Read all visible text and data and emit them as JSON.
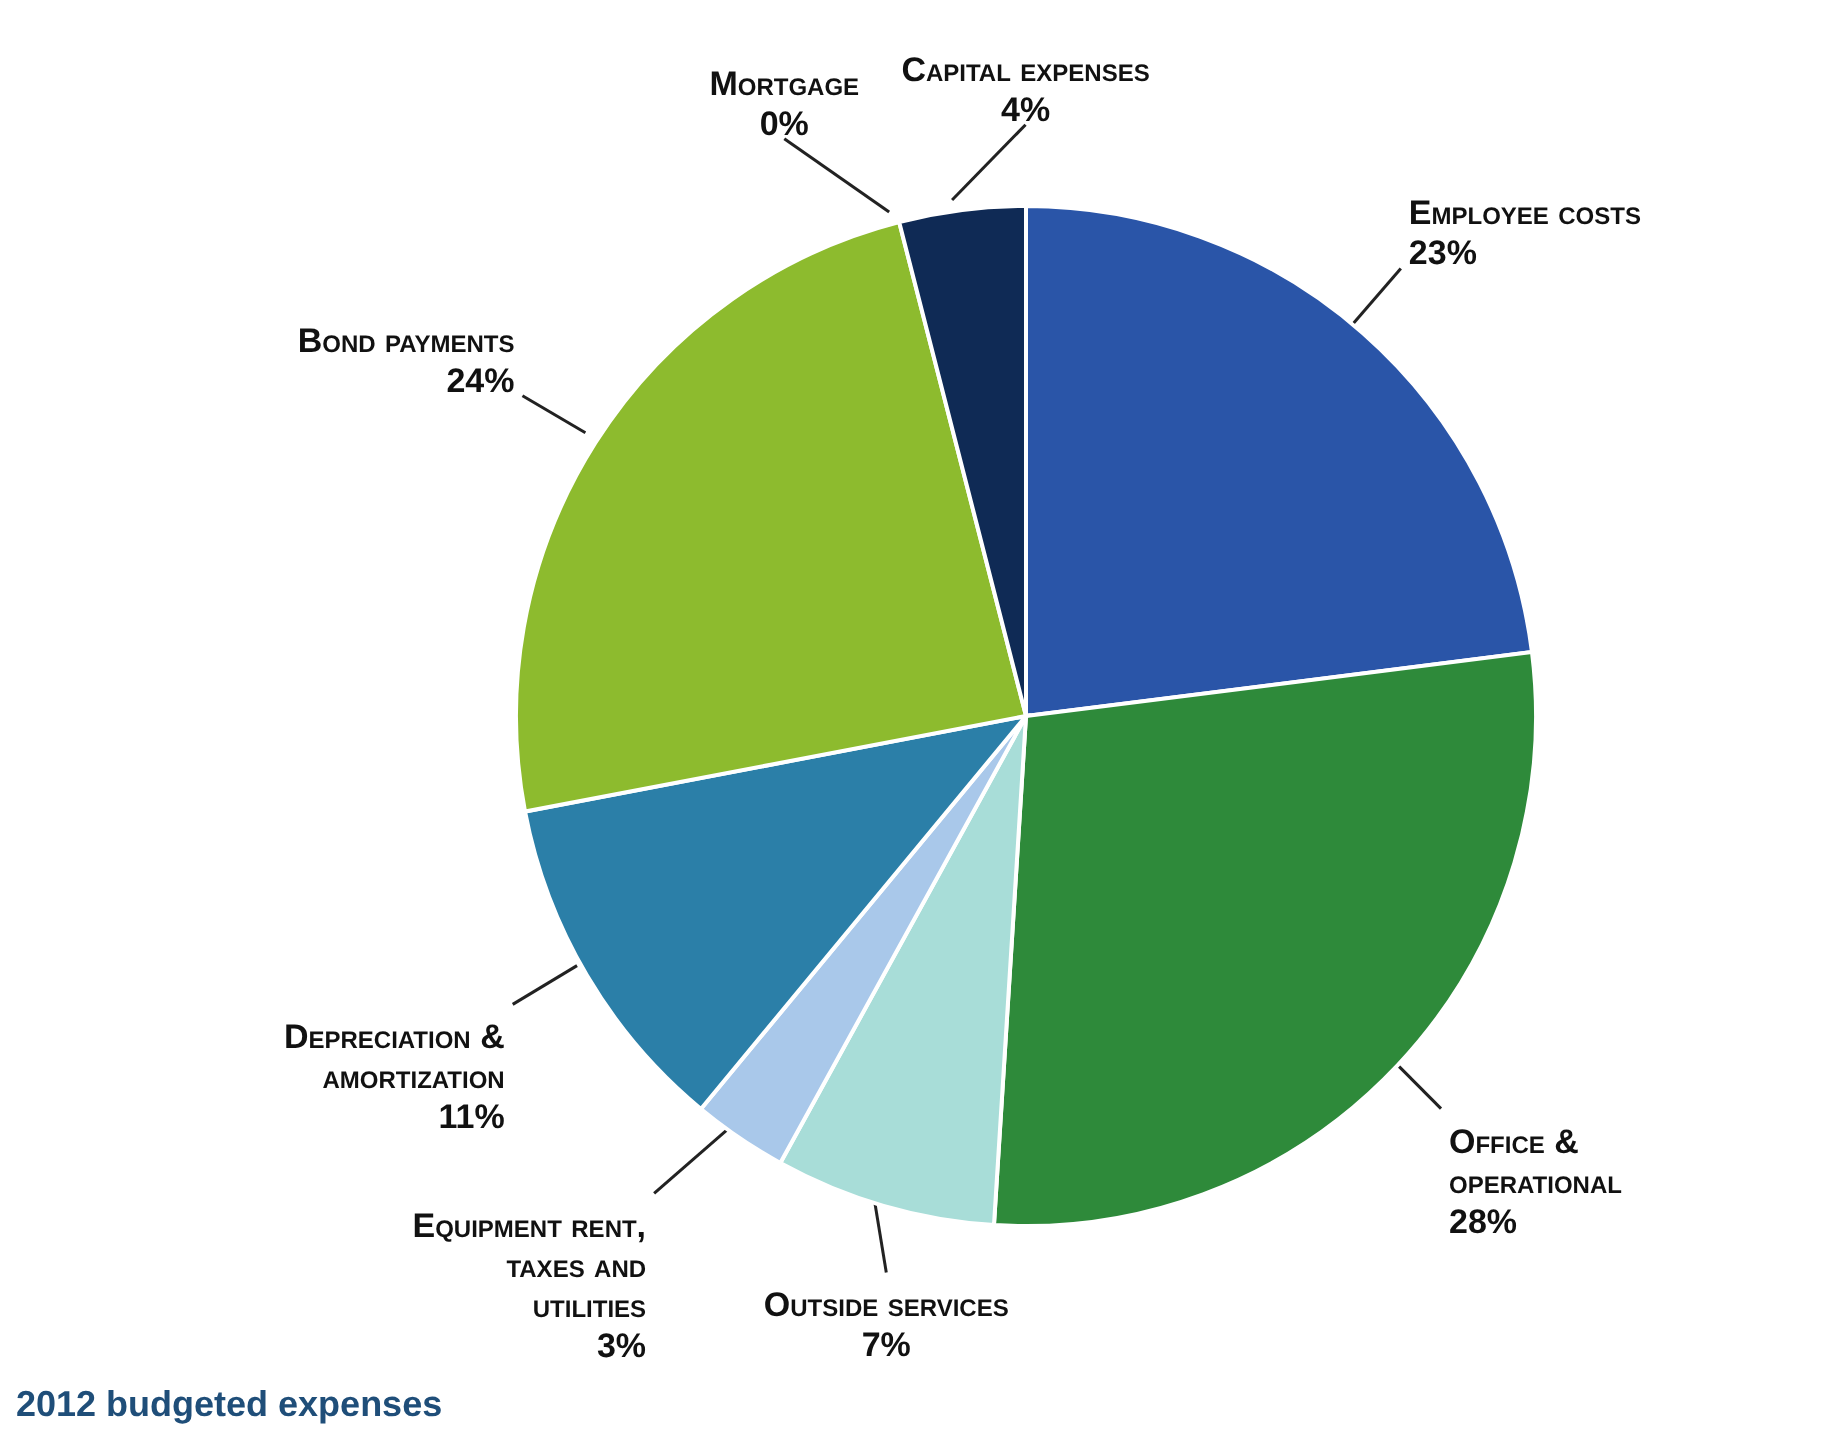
{
  "chart_data": {
    "type": "pie",
    "title": "2012 budgeted expenses",
    "categories": [
      "Employee costs",
      "Office & operational",
      "Outside services",
      "Equipment rent, taxes and utilities",
      "Depreciation & amortization",
      "Bond payments",
      "Mortgage",
      "Capital expenses"
    ],
    "values": [
      23,
      28,
      7,
      3,
      11,
      24,
      0,
      4
    ],
    "value_labels": [
      "23%",
      "28%",
      "7%",
      "3%",
      "11%",
      "24%",
      "0%",
      "4%"
    ],
    "colors": [
      "#2a55a8",
      "#2e8a3a",
      "#a8ddd8",
      "#a9c8ea",
      "#2b7fa8",
      "#8dbb2e",
      "#5b8fd0",
      "#0f2a55"
    ],
    "legend": false
  }
}
